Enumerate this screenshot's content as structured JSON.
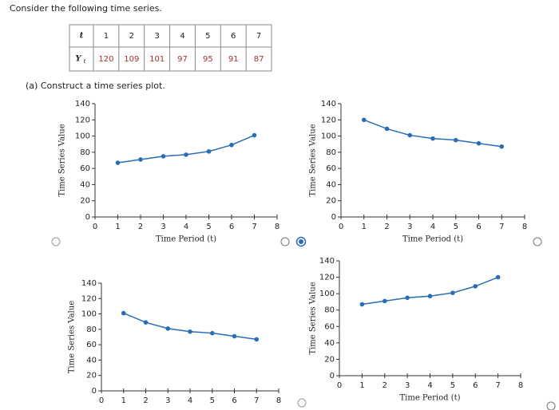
{
  "prompt": "Consider the following time series.",
  "table": {
    "header_label": "t",
    "row_label": {
      "base": "Y",
      "sub": "t"
    },
    "t": [
      1,
      2,
      3,
      4,
      5,
      6,
      7
    ],
    "y": [
      120,
      109,
      101,
      97,
      95,
      91,
      87
    ]
  },
  "question": "(a) Construct a time series plot.",
  "chart_data": [
    {
      "type": "line",
      "x": [
        1,
        2,
        3,
        4,
        5,
        6,
        7
      ],
      "values": [
        67,
        71,
        75,
        77,
        81,
        89,
        101
      ],
      "color": "#2a6db5",
      "xlabel": "Time Period (t)",
      "ylabel": "Time Series Value",
      "xlim": [
        0,
        8
      ],
      "ylim": [
        0,
        140
      ],
      "xticks": [
        0,
        1,
        2,
        3,
        4,
        5,
        6,
        7,
        8
      ],
      "yticks": [
        0,
        20,
        40,
        60,
        80,
        100,
        120,
        140
      ]
    },
    {
      "type": "line",
      "x": [
        1,
        2,
        3,
        4,
        5,
        6,
        7
      ],
      "values": [
        120,
        109,
        101,
        97,
        95,
        91,
        87
      ],
      "color": "#2a6db5",
      "xlabel": "Time Period (t)",
      "ylabel": "Time Series Value",
      "xlim": [
        0,
        8
      ],
      "ylim": [
        0,
        140
      ],
      "xticks": [
        0,
        1,
        2,
        3,
        4,
        5,
        6,
        7,
        8
      ],
      "yticks": [
        0,
        20,
        40,
        60,
        80,
        100,
        120,
        140
      ]
    },
    {
      "type": "line",
      "x": [
        1,
        2,
        3,
        4,
        5,
        6,
        7
      ],
      "values": [
        101,
        89,
        81,
        77,
        75,
        71,
        67
      ],
      "color": "#2a6db5",
      "ylabel": "Time Series Value",
      "xlim": [
        0,
        8
      ],
      "ylim": [
        0,
        140
      ],
      "xticks": [
        0,
        1,
        2,
        3,
        4,
        5,
        6,
        7,
        8
      ],
      "yticks": [
        0,
        20,
        40,
        60,
        80,
        100,
        120,
        140
      ]
    },
    {
      "type": "line",
      "x": [
        1,
        2,
        3,
        4,
        5,
        6,
        7
      ],
      "values": [
        87,
        91,
        95,
        97,
        101,
        109,
        120
      ],
      "color": "#2a6db5",
      "xlabel": "Time Period (t)",
      "ylabel": "Time Series Value",
      "xlim": [
        0,
        8
      ],
      "ylim": [
        0,
        140
      ],
      "xticks": [
        0,
        1,
        2,
        3,
        4,
        5,
        6,
        7,
        8
      ],
      "yticks": [
        0,
        20,
        40,
        60,
        80,
        100,
        120,
        140
      ]
    }
  ]
}
